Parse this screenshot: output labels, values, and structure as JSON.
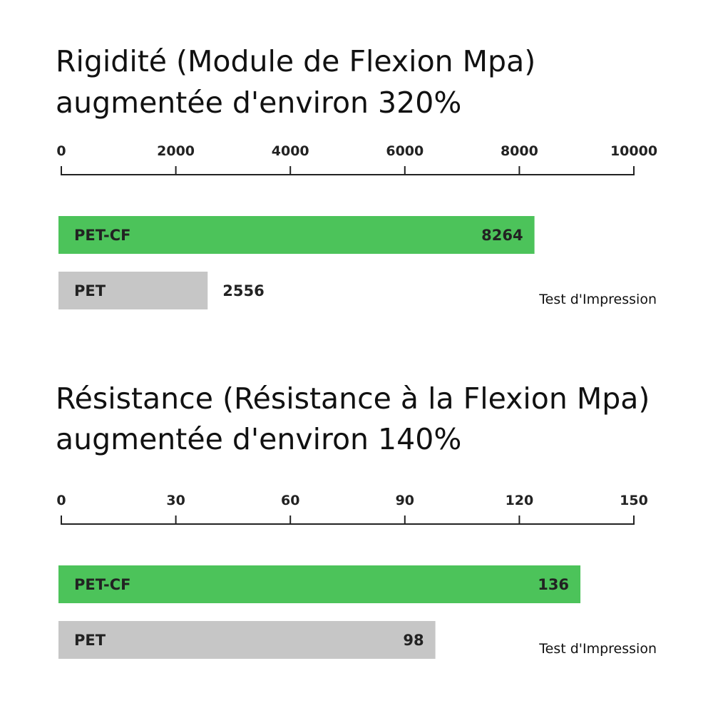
{
  "chart_data": [
    {
      "type": "bar",
      "orientation": "horizontal",
      "title_lines": [
        "Rigidité (Module de Flexion Mpa)",
        "augmentée d'environ 320%"
      ],
      "xlim": [
        0,
        10000
      ],
      "ticks": [
        "0",
        "2000",
        "4000",
        "6000",
        "8000",
        "10000"
      ],
      "tick_values": [
        0,
        2000,
        4000,
        6000,
        8000,
        10000
      ],
      "categories": [
        "PET-CF",
        "PET"
      ],
      "values": [
        8264,
        2556
      ],
      "value_labels": [
        "8264",
        "2556"
      ],
      "value_label_inside": [
        true,
        false
      ],
      "colors": [
        "#4cc35a",
        "#c6c6c6"
      ],
      "note": "Test d'Impression"
    },
    {
      "type": "bar",
      "orientation": "horizontal",
      "title_lines": [
        "Résistance (Résistance à la Flexion Mpa)",
        "augmentée d'environ 140%"
      ],
      "xlim": [
        0,
        150
      ],
      "ticks": [
        "0",
        "30",
        "60",
        "90",
        "120",
        "150"
      ],
      "tick_values": [
        0,
        30,
        60,
        90,
        120,
        150
      ],
      "categories": [
        "PET-CF",
        "PET"
      ],
      "values": [
        136,
        98
      ],
      "value_labels": [
        "136",
        "98"
      ],
      "value_label_inside": [
        true,
        true
      ],
      "colors": [
        "#4cc35a",
        "#c6c6c6"
      ],
      "note": "Test d'Impression"
    }
  ]
}
